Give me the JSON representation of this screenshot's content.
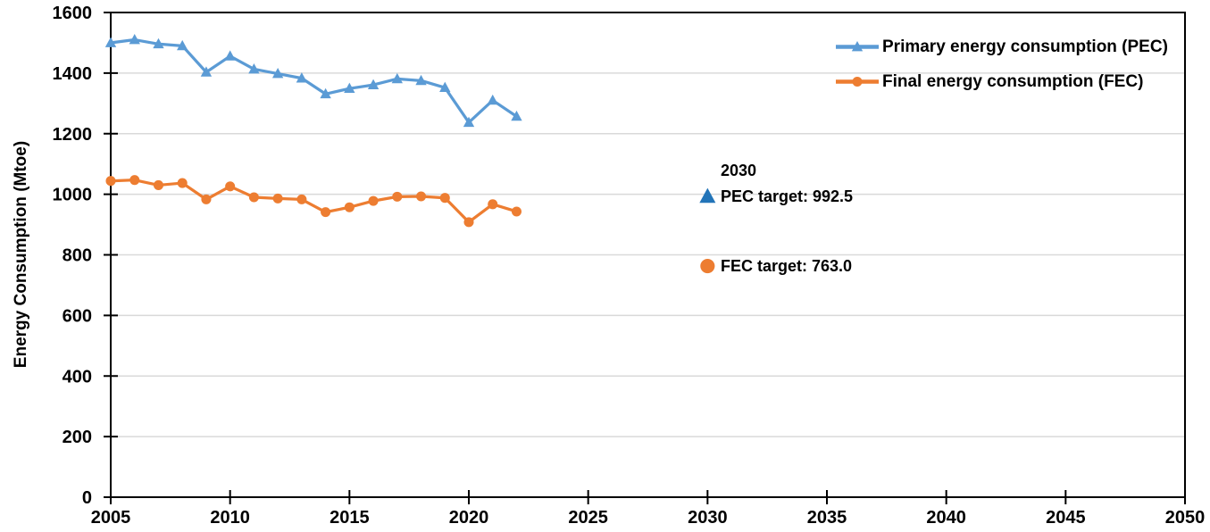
{
  "chart_data": {
    "type": "line",
    "title": "",
    "xlabel": "",
    "ylabel": "Energy Consumption (Mtoe)",
    "xlim": [
      2005,
      2050
    ],
    "ylim": [
      0,
      1600
    ],
    "x_ticks": [
      2005,
      2010,
      2015,
      2020,
      2025,
      2030,
      2035,
      2040,
      2045,
      2050
    ],
    "y_ticks": [
      0,
      200,
      400,
      600,
      800,
      1000,
      1200,
      1400,
      1600
    ],
    "grid": "horizontal",
    "legend_position": "top-right-inside",
    "colors": {
      "grid": "#d9d9d9",
      "axis": "#000000",
      "text": "#000000"
    },
    "series": [
      {
        "name": "Primary energy consumption (PEC)",
        "color": "#5B9BD5",
        "marker": "triangle",
        "x": [
          2005,
          2006,
          2007,
          2008,
          2009,
          2010,
          2011,
          2012,
          2013,
          2014,
          2015,
          2016,
          2017,
          2018,
          2019,
          2020,
          2021,
          2022
        ],
        "values": [
          1500,
          1510,
          1496,
          1490,
          1403,
          1456,
          1413,
          1398,
          1383,
          1331,
          1349,
          1361,
          1381,
          1375,
          1352,
          1237,
          1310,
          1257
        ]
      },
      {
        "name": "Final energy consumption (FEC)",
        "color": "#ED7D31",
        "marker": "circle",
        "x": [
          2005,
          2006,
          2007,
          2008,
          2009,
          2010,
          2011,
          2012,
          2013,
          2014,
          2015,
          2016,
          2017,
          2018,
          2019,
          2020,
          2021,
          2022
        ],
        "values": [
          1044,
          1047,
          1030,
          1037,
          983,
          1026,
          990,
          986,
          983,
          941,
          957,
          978,
          992,
          993,
          988,
          908,
          967,
          943
        ]
      }
    ],
    "annotations": {
      "year_label": "2030",
      "targets": [
        {
          "label": "PEC target: 992.5",
          "x": 2030,
          "value": 992.5,
          "marker": "triangle",
          "color": "#2274B8"
        },
        {
          "label": "FEC target: 763.0",
          "x": 2030,
          "value": 763.0,
          "marker": "circle",
          "color": "#ED7D31"
        }
      ]
    }
  }
}
